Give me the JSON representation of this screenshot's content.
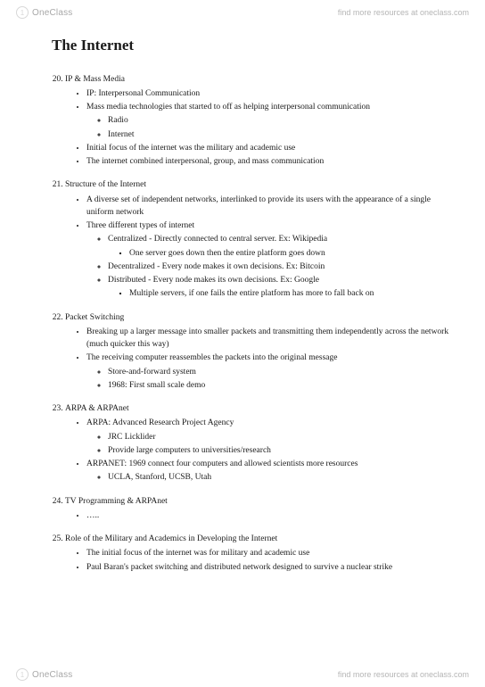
{
  "brand": {
    "logo_text": "OneClass",
    "tagline": "find more resources at oneclass.com"
  },
  "doc": {
    "title": "The Internet",
    "start_num": 20,
    "sections": [
      {
        "heading": "IP & Mass Media",
        "b1": [
          {
            "t": "IP: Interpersonal Communication"
          },
          {
            "t": "Mass media technologies that started to off as helping interpersonal communication",
            "b2": [
              {
                "t": "Radio"
              },
              {
                "t": "Internet"
              }
            ]
          },
          {
            "t": "Initial focus of the internet was the military and academic use"
          },
          {
            "t": "The internet combined interpersonal, group, and mass communication"
          }
        ]
      },
      {
        "heading": "Structure of the Internet",
        "b1": [
          {
            "t": "A diverse set of independent networks, interlinked to provide its users with the appearance of a single uniform network"
          },
          {
            "t": "Three different types of internet",
            "b2": [
              {
                "t": "Centralized - Directly connected to central server. Ex: Wikipedia",
                "b3": [
                  {
                    "t": "One server goes down then the entire platform goes down"
                  }
                ]
              },
              {
                "t": "Decentralized - Every node makes it own decisions. Ex: Bitcoin"
              },
              {
                "t": "Distributed - Every node makes its own decisions. Ex: Google",
                "b3": [
                  {
                    "t": "Multiple servers, if one fails the entire platform has more to fall back on"
                  }
                ]
              }
            ]
          }
        ]
      },
      {
        "heading": "Packet Switching",
        "b1": [
          {
            "t": "Breaking up a larger message into smaller packets and transmitting them independently across the network (much quicker this way)"
          },
          {
            "t": "The receiving computer reassembles the packets into the original message",
            "b2": [
              {
                "t": "Store-and-forward system"
              },
              {
                "t": "1968: First small scale demo"
              }
            ]
          }
        ]
      },
      {
        "heading": "ARPA & ARPAnet",
        "b1": [
          {
            "t": "ARPA: Advanced Research Project Agency",
            "b2": [
              {
                "t": "JRC Licklider"
              },
              {
                "t": "Provide large computers to universities/research"
              }
            ]
          },
          {
            "t": "ARPANET: 1969 connect four computers and allowed scientists more resources",
            "b2": [
              {
                "t": "UCLA, Stanford, UCSB, Utah"
              }
            ]
          }
        ]
      },
      {
        "heading": "TV Programming & ARPAnet",
        "b1": [
          {
            "t": "….."
          }
        ]
      },
      {
        "heading": "Role of the Military and Academics in Developing the Internet",
        "b1": [
          {
            "t": "The initial focus of the internet was for military and academic use"
          },
          {
            "t": "Paul Baran's packet switching and distributed network designed to survive a nuclear strike"
          }
        ]
      }
    ]
  }
}
